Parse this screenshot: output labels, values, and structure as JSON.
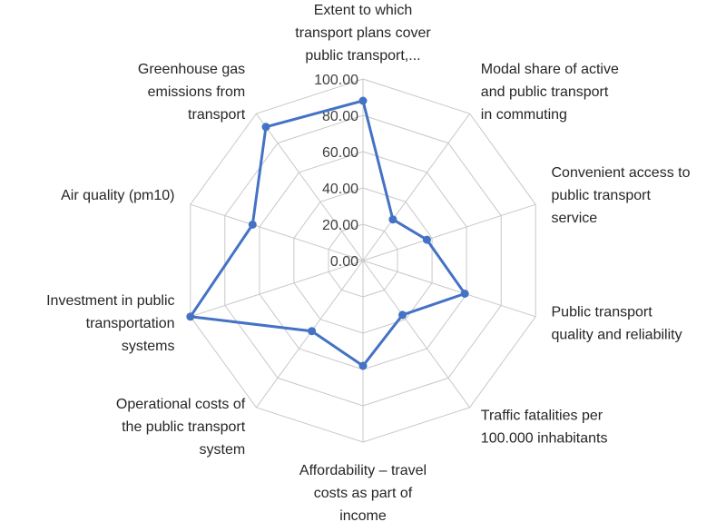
{
  "chart_data": {
    "type": "radar",
    "categories": [
      [
        "Extent to which",
        "transport plans cover",
        "public transport,..."
      ],
      [
        "Modal share of active",
        "and public transport",
        "in commuting"
      ],
      [
        "Convenient access to",
        "public transport",
        "service"
      ],
      [
        "Public transport",
        "quality and reliability"
      ],
      [
        "Traffic fatalities  per",
        "100.000 inhabitants"
      ],
      [
        "Affordability – travel",
        "costs as part of",
        "income"
      ],
      [
        "Operational costs of",
        "the public transport",
        "system"
      ],
      [
        "Investment in public",
        "transportation",
        "systems"
      ],
      [
        "Air quality (pm10)"
      ],
      [
        "Greenhouse gas",
        "emissions from",
        "transport"
      ]
    ],
    "series": [
      {
        "values": [
          88,
          28,
          37,
          59,
          37,
          58,
          48,
          100,
          64,
          91
        ],
        "color": "#4472c4"
      }
    ],
    "rlim": [
      0,
      100
    ],
    "ticks": [
      "0.00",
      "20.00",
      "40.00",
      "60.00",
      "80.00",
      "100.00"
    ],
    "gridlines": true,
    "legend": false
  }
}
